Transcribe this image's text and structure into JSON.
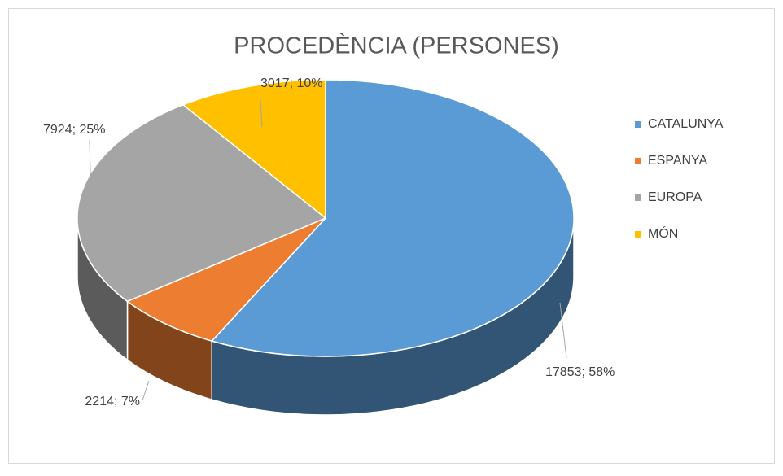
{
  "chart_data": {
    "type": "pie",
    "title": "PROCEDÈNCIA (PERSONES)",
    "categories": [
      "CATALUNYA",
      "ESPANYA",
      "EUROPA",
      "MÓN"
    ],
    "values": [
      17853,
      2214,
      7924,
      3017
    ],
    "value_labels": [
      "17853; 58%",
      "2214; 7%",
      "7924; 25%",
      "3017; 10%"
    ],
    "colors": [
      "#5b9bd5",
      "#ed7d31",
      "#a5a5a5",
      "#ffc000"
    ],
    "legend": "right"
  }
}
